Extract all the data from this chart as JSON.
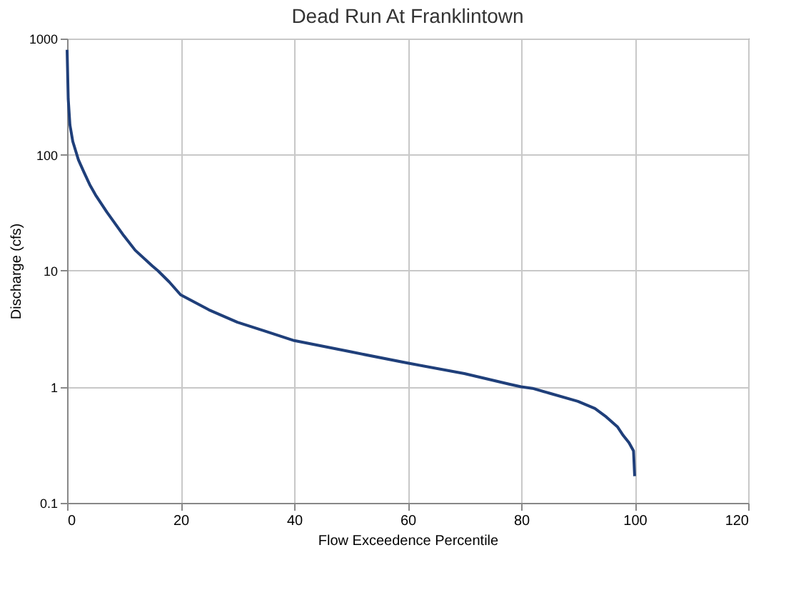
{
  "chart_data": {
    "type": "line",
    "title": "Dead Run At Franklintown",
    "xlabel": "Flow Exceedence Percentile",
    "ylabel": "Discharge (cfs)",
    "x": [
      0,
      0.2,
      0.5,
      1,
      2,
      3,
      4,
      5,
      7,
      10,
      12,
      15,
      16,
      18,
      20,
      25,
      30,
      35,
      40,
      50,
      60,
      70,
      78,
      80,
      82,
      85,
      90,
      93,
      95,
      97,
      98,
      99,
      99.8,
      100
    ],
    "series": [
      {
        "color": "#1f3f7a",
        "values": [
          800,
          300,
          180,
          130,
          90,
          70,
          55,
          45,
          32,
          20,
          15,
          11,
          10,
          8,
          6.2,
          4.6,
          3.6,
          3,
          2.5,
          2,
          1.6,
          1.3,
          1.05,
          1.0,
          0.97,
          0.88,
          0.75,
          0.65,
          0.55,
          0.45,
          0.38,
          0.33,
          0.28,
          0.17
        ]
      }
    ],
    "xlim": [
      0,
      120
    ],
    "xticks": [
      0,
      20,
      40,
      60,
      80,
      100,
      120
    ],
    "ylim": [
      0.1,
      1000
    ],
    "yticks": [
      0.1,
      1,
      10,
      100,
      1000
    ],
    "log": "y",
    "grid": true,
    "marker": "none",
    "line_style": "solid"
  }
}
